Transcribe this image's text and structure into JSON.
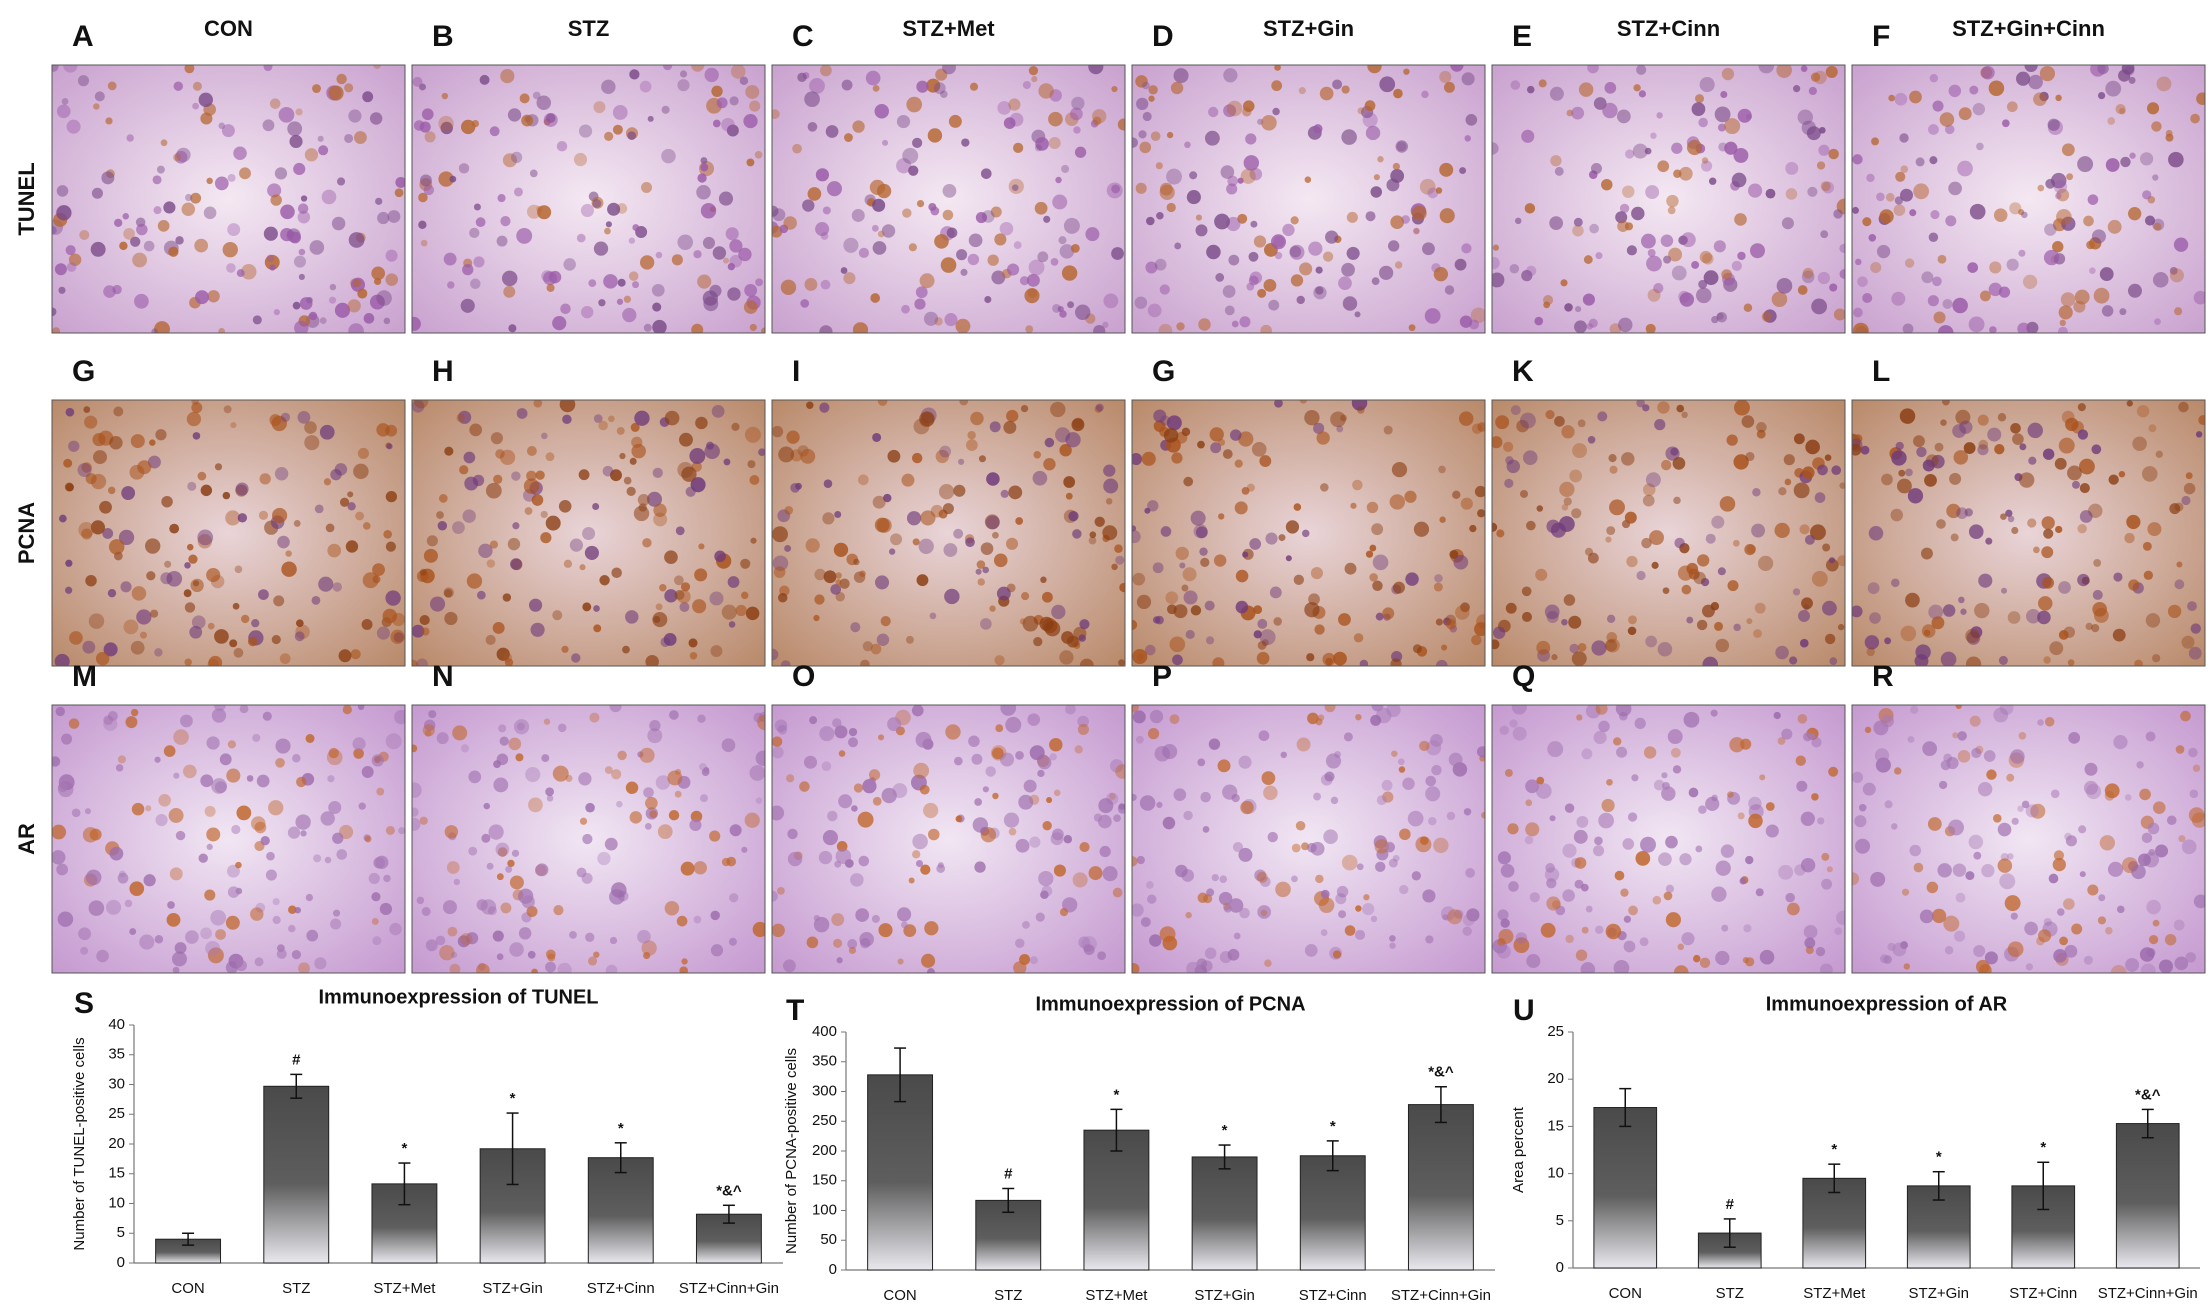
{
  "rows": [
    {
      "label": "TUNEL"
    },
    {
      "label": "PCNA"
    },
    {
      "label": "AR"
    }
  ],
  "panels": [
    {
      "letter": "A",
      "title": "CON"
    },
    {
      "letter": "B",
      "title": "STZ"
    },
    {
      "letter": "C",
      "title": "STZ+Met"
    },
    {
      "letter": "D",
      "title": "STZ+Gin"
    },
    {
      "letter": "E",
      "title": "STZ+Cinn"
    },
    {
      "letter": "F",
      "title": "STZ+Gin+Cinn"
    },
    {
      "letter": "G"
    },
    {
      "letter": "H"
    },
    {
      "letter": "I"
    },
    {
      "letter": "G"
    },
    {
      "letter": "K"
    },
    {
      "letter": "L"
    },
    {
      "letter": "M"
    },
    {
      "letter": "N"
    },
    {
      "letter": "O"
    },
    {
      "letter": "P"
    },
    {
      "letter": "Q"
    },
    {
      "letter": "R"
    }
  ],
  "chart_data": [
    {
      "type": "bar",
      "panel_label": "S",
      "title": "Immunoexpression of TUNEL",
      "ylabel": "Number of TUNEL-positive cells",
      "categories": [
        "CON",
        "STZ",
        "STZ+Met",
        "STZ+Gin",
        "STZ+Cinn",
        "STZ+Cinn+Gin"
      ],
      "values": [
        4,
        29.7,
        13.3,
        19.2,
        17.7,
        8.2
      ],
      "errors": [
        1,
        2,
        3.5,
        6,
        2.5,
        1.5
      ],
      "annotations": [
        null,
        "#",
        "*",
        "*",
        "*",
        "*&^"
      ],
      "ylim": [
        0,
        40
      ],
      "yticks": [
        0,
        5,
        10,
        15,
        20,
        25,
        30,
        35,
        40
      ]
    },
    {
      "type": "bar",
      "panel_label": "T",
      "title": "Immunoexpression of PCNA",
      "ylabel": "Number of PCNA-positive cells",
      "categories": [
        "CON",
        "STZ",
        "STZ+Met",
        "STZ+Gin",
        "STZ+Cinn",
        "STZ+Cinn+Gin"
      ],
      "values": [
        328,
        117,
        235,
        190,
        192,
        278
      ],
      "errors": [
        45,
        20,
        35,
        20,
        25,
        30
      ],
      "annotations": [
        null,
        "#",
        "*",
        "*",
        "*",
        "*&^"
      ],
      "ylim": [
        0,
        400
      ],
      "yticks": [
        0,
        50,
        100,
        150,
        200,
        250,
        300,
        350,
        400
      ]
    },
    {
      "type": "bar",
      "panel_label": "U",
      "title": "Immunoexpression of AR",
      "ylabel": "Area percent",
      "categories": [
        "CON",
        "STZ",
        "STZ+Met",
        "STZ+Gin",
        "STZ+Cinn",
        "STZ+Cinn+Gin"
      ],
      "values": [
        17,
        3.7,
        9.5,
        8.7,
        8.7,
        15.3
      ],
      "errors": [
        2,
        1.5,
        1.5,
        1.5,
        2.5,
        1.5
      ],
      "annotations": [
        null,
        "#",
        "*",
        "*",
        "*",
        "*&^"
      ],
      "ylim": [
        0,
        25
      ],
      "yticks": [
        0,
        5,
        10,
        15,
        20,
        25
      ]
    }
  ]
}
